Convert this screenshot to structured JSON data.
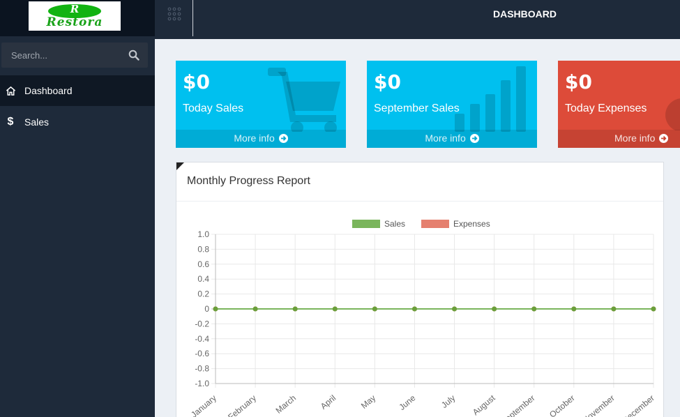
{
  "brand": {
    "logo_text": "Restora",
    "logo_initial": "R"
  },
  "sidebar": {
    "search": {
      "placeholder": "Search..."
    },
    "items": [
      {
        "label": "Dashboard",
        "icon": "home-icon",
        "active": true
      },
      {
        "label": "Sales",
        "icon": "dollar-icon",
        "active": false
      }
    ]
  },
  "header": {
    "title": "DASHBOARD"
  },
  "cards": [
    {
      "value": "$0",
      "label": "Today Sales",
      "footer": "More info",
      "color": "#00c0ef",
      "icon": "shopping-cart-icon"
    },
    {
      "value": "$0",
      "label": "September Sales",
      "footer": "More info",
      "color": "#00c0ef",
      "icon": "bar-chart-icon"
    },
    {
      "value": "$0",
      "label": "Today Expenses",
      "footer": "More info",
      "color": "#dd4b39",
      "icon": "user-icon"
    }
  ],
  "report": {
    "title": "Monthly Progress Report"
  },
  "chart_data": {
    "type": "line",
    "categories": [
      "January",
      "February",
      "March",
      "April",
      "May",
      "June",
      "July",
      "August",
      "September",
      "October",
      "November",
      "December"
    ],
    "series": [
      {
        "name": "Sales",
        "values": [
          0,
          0,
          0,
          0,
          0,
          0,
          0,
          0,
          0,
          0,
          0,
          0
        ],
        "color": "#7ab55c"
      },
      {
        "name": "Expenses",
        "values": [
          0,
          0,
          0,
          0,
          0,
          0,
          0,
          0,
          0,
          0,
          0,
          0
        ],
        "color": "#e5806f"
      }
    ],
    "yticks": [
      "1.0",
      "0.8",
      "0.6",
      "0.4",
      "0.2",
      "0",
      "-0.2",
      "-0.4",
      "-0.6",
      "-0.8",
      "-1.0"
    ],
    "ylim": [
      -1,
      1
    ],
    "grid": true,
    "legend": "top-center"
  }
}
